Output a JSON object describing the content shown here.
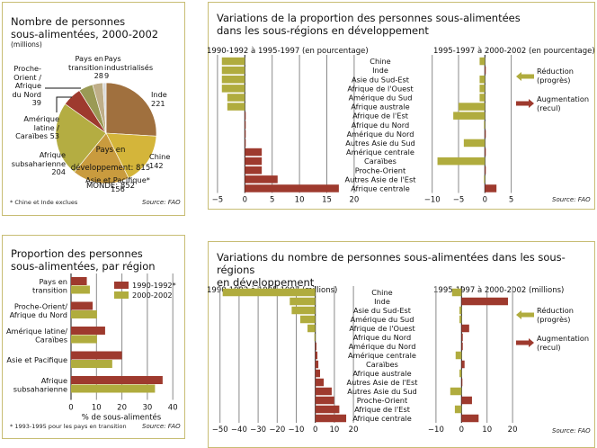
{
  "colors": {
    "red": "#9e3a2e",
    "olive": "#b0ac3e",
    "grid": "#8a8a8a",
    "border": "#c8bd74"
  },
  "pie_panel": {
    "title_line1": "Nombre de personnes",
    "title_line2": "sous-alimentées, 2000-2002",
    "unit": "(millions)",
    "footnote": "* Chine et Inde exclues",
    "source": "Source: FAO",
    "center_line1": "Pays en",
    "center_line2": "développement: 815",
    "center_line3": "MONDE: 852"
  },
  "bar_panel": {
    "title_line1": "Proportion des personnes",
    "title_line2": "sous-alimentées, par région",
    "footnote": "* 1993-1995 pour les pays en transition",
    "source": "Source: FAO"
  },
  "top_right_panel": {
    "title_line1": "Variations de la proportion des personnes sous-alimentées",
    "title_line2": "dans les sous-régions en développement",
    "left_subtitle": "1990-1992 à 1995-1997 (en pourcentage)",
    "right_subtitle": "1995-1997 à 2000-2002 (en pourcentage)",
    "legend_reduction": "Réduction\n(progrès)",
    "legend_increase": "Augmentation\n(recul)",
    "source": "Source: FAO"
  },
  "bottom_right_panel": {
    "title_line1": "Variations du nombre de personnes sous-alimentées dans les sous-régions",
    "title_line2": "en développement",
    "left_subtitle": "1990-1992 à 1995-1997 (millions)",
    "right_subtitle": "1995-1997 à 2000-2002 (millions)",
    "legend_reduction": "Réduction\n(progrès)",
    "legend_increase": "Augmentation\n(recul)",
    "source": "Source: FAO"
  },
  "chart_data": [
    {
      "type": "pie",
      "title": "Nombre de personnes sous-alimentées, 2000-2002 (millions)",
      "slices": [
        {
          "label": "Inde",
          "value": 221,
          "color": "#a0703e"
        },
        {
          "label": "Chine",
          "value": 142,
          "color": "#d4b53a"
        },
        {
          "label": "Asie et Pacifique*",
          "value": 156,
          "color": "#c99b3e"
        },
        {
          "label": "Afrique subsaharienne",
          "value": 204,
          "color": "#b4ad42"
        },
        {
          "label": "Amérique latine / Caraïbes",
          "value": 53,
          "color": "#9e3a2e"
        },
        {
          "label": "Proche-Orient / Afrique du Nord",
          "value": 39,
          "color": "#9a9a55"
        },
        {
          "label": "Pays en transition",
          "value": 28,
          "color": "#bfae88"
        },
        {
          "label": "Pays industrialisés",
          "value": 9,
          "color": "#d8d8d8"
        }
      ],
      "labels_text": {
        "Inde": "Inde\n221",
        "Chine": "Chine\n142",
        "Asie": "Asie et Pacifique*\n156",
        "Afrique": "Afrique\nsubsaharienne\n204",
        "AmLat": "Amérique\nlatine /\nCaraïbes 53",
        "Proche": "Proche-\nOrient /\nAfrique\ndu Nord\n39",
        "Transition": "Pays en\ntransition\n28",
        "Indus": "Pays\nindustrialisés\n9"
      },
      "total_developing": 815,
      "total_world": 852
    },
    {
      "type": "bar",
      "orientation": "horizontal",
      "title": "Proportion des personnes sous-alimentées, par région",
      "xlabel": "% de sous-alimentés",
      "xlim": [
        0,
        40
      ],
      "xticks": [
        0,
        10,
        20,
        30,
        40
      ],
      "grid": true,
      "legend_position": "top-right",
      "categories": [
        "Pays en\ntransition",
        "Proche-Orient/\nAfrique du Nord",
        "Amérique latine/\nCaraïbes",
        "Asie et Pacifique",
        "Afrique\nsubsaharienne"
      ],
      "series": [
        {
          "name": "1990-1992*",
          "color": "#9e3a2e",
          "values": [
            6.2,
            8.5,
            13.4,
            20,
            36
          ]
        },
        {
          "name": "2000-2002",
          "color": "#b0ac3e",
          "values": [
            7.4,
            10.2,
            10.2,
            16.2,
            33
          ]
        }
      ]
    },
    {
      "type": "bar",
      "orientation": "horizontal",
      "title": "Variations de la proportion des personnes sous-alimentées — 1990-1992 à 1995-1997 (en pourcentage)",
      "xlim": [
        -5,
        20
      ],
      "xticks": [
        -5,
        0,
        5,
        10,
        15,
        20
      ],
      "grid": true,
      "categories": [
        "Chine",
        "Inde",
        "Asie du Sud-Est",
        "Afrique de l'Ouest",
        "Amérique du Sud",
        "Afrique australe",
        "Afrique de l'Est",
        "Afrique du Nord",
        "Amérique du Nord",
        "Autres Asie du Sud",
        "Amérique centrale",
        "Caraïbes",
        "Proche-Orient",
        "Autres Asie de l'Est",
        "Afrique centrale"
      ],
      "values": [
        -4.2,
        -4.2,
        -4.2,
        -4.2,
        -3.2,
        -3.2,
        0.1,
        0.1,
        0.1,
        0.1,
        3.1,
        3.1,
        3.1,
        6,
        17.2
      ]
    },
    {
      "type": "bar",
      "orientation": "horizontal",
      "title": "Variations de la proportion des personnes sous-alimentées — 1995-1997 à 2000-2002 (en pourcentage)",
      "xlim": [
        -10,
        5
      ],
      "xticks": [
        -10,
        -5,
        0,
        5
      ],
      "grid": true,
      "values": [
        -1,
        0.1,
        -1,
        -1,
        -1,
        -5,
        -6,
        -0.1,
        0.1,
        -4,
        0.1,
        -9,
        0.1,
        -0.1,
        2.2
      ]
    },
    {
      "type": "bar",
      "orientation": "horizontal",
      "title": "Variations du nombre de personnes sous-alimentées — 1990-1992 à 1995-1997 (millions)",
      "xlim": [
        -50,
        20
      ],
      "xticks": [
        -50,
        -40,
        -30,
        -20,
        -10,
        0,
        10,
        20
      ],
      "grid": true,
      "categories": [
        "Chine",
        "Inde",
        "Asie du Sud-Est",
        "Amérique du Sud",
        "Afrique de l'Ouest",
        "Afrique du Nord",
        "Amérique du Nord",
        "Amérique centrale",
        "Caraïbes",
        "Afrique australe",
        "Autres Asie de l'Est",
        "Autres Asie du Sud",
        "Proche-Orient",
        "Afrique de l'Est",
        "Afrique centrale"
      ],
      "values": [
        -48.6,
        -13.4,
        -12.4,
        -7.9,
        -4.1,
        -0.3,
        0.6,
        1.1,
        1.6,
        2.5,
        4.4,
        8.6,
        9.9,
        12.6,
        16.2
      ]
    },
    {
      "type": "bar",
      "orientation": "horizontal",
      "title": "Variations du nombre de personnes sous-alimentées — 1995-1997 à 2000-2002 (millions)",
      "xlim": [
        -10,
        20
      ],
      "xticks": [
        -10,
        0,
        10,
        20
      ],
      "grid": true,
      "values": [
        -3.7,
        18.2,
        -0.8,
        -0.8,
        3,
        0.5,
        0.5,
        -2.3,
        1.2,
        -0.8,
        0.2,
        -4.4,
        4.1,
        -2.6,
        6.7
      ]
    }
  ]
}
